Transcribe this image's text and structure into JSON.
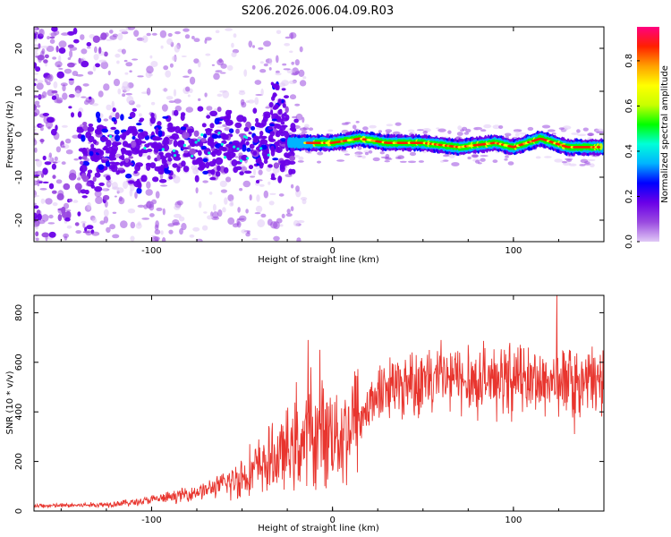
{
  "title": "S206.2026.006.04.09.R03",
  "colors": {
    "line": "#e8352e",
    "axis": "#000000"
  },
  "chart_data": [
    {
      "type": "heatmap",
      "name": "spectrogram",
      "xlabel": "Height of straight line (km)",
      "ylabel": "Frequency (Hz)",
      "xlim": [
        -165,
        150
      ],
      "ylim": [
        -25,
        25
      ],
      "xticks": [
        {
          "v": -100,
          "label": "-100"
        },
        {
          "v": 0,
          "label": "0"
        },
        {
          "v": 100,
          "label": "100"
        }
      ],
      "yticks": [
        {
          "v": 20,
          "label": "20"
        },
        {
          "v": 10,
          "label": "10"
        },
        {
          "v": 0,
          "label": "0"
        },
        {
          "v": -10,
          "label": "-10"
        },
        {
          "v": -20,
          "label": "-20"
        }
      ],
      "ridge": {
        "description": "dominant frequency ridge",
        "points": [
          [
            -165,
            -4
          ],
          [
            -130,
            -5
          ],
          [
            -100,
            -3
          ],
          [
            -70,
            -2
          ],
          [
            -40,
            -3
          ],
          [
            -25,
            -2
          ],
          [
            -15,
            -2
          ],
          [
            0,
            -2
          ],
          [
            15,
            -1
          ],
          [
            30,
            -2
          ],
          [
            50,
            -2
          ],
          [
            70,
            -3
          ],
          [
            90,
            -2
          ],
          [
            100,
            -3
          ],
          [
            115,
            -1
          ],
          [
            130,
            -3
          ],
          [
            150,
            -3
          ]
        ]
      }
    },
    {
      "type": "colorbar",
      "name": "colorbar",
      "label": "Normalized spectral amplitude",
      "range": [
        0,
        0.95
      ],
      "ticks": [
        {
          "v": 0.0,
          "label": "0.0"
        },
        {
          "v": 0.2,
          "label": "0.2"
        },
        {
          "v": 0.4,
          "label": "0.4"
        },
        {
          "v": 0.6,
          "label": "0.6"
        },
        {
          "v": 0.8,
          "label": "0.8"
        }
      ],
      "colormap": [
        "#e0c8f5",
        "#9a4ae0",
        "#6a00e8",
        "#0000ff",
        "#00b4ff",
        "#00ffd8",
        "#00ff00",
        "#c8ff00",
        "#ffff00",
        "#ffa000",
        "#ff2000",
        "#ff0080"
      ]
    },
    {
      "type": "line",
      "name": "snr",
      "xlabel": "Height of straight line (km)",
      "ylabel": "SNR (10 * v/v)",
      "xlim": [
        -165,
        150
      ],
      "ylim": [
        0,
        870
      ],
      "xticks": [
        {
          "v": -100,
          "label": "-100"
        },
        {
          "v": 0,
          "label": "0"
        },
        {
          "v": 100,
          "label": "100"
        }
      ],
      "yticks": [
        {
          "v": 0,
          "label": "0"
        },
        {
          "v": 200,
          "label": "200"
        },
        {
          "v": 400,
          "label": "400"
        },
        {
          "v": 600,
          "label": "600"
        },
        {
          "v": 800,
          "label": "800"
        }
      ],
      "trend": [
        [
          -165,
          20
        ],
        [
          -130,
          25
        ],
        [
          -110,
          35
        ],
        [
          -90,
          55
        ],
        [
          -70,
          85
        ],
        [
          -55,
          120
        ],
        [
          -45,
          160
        ],
        [
          -35,
          200
        ],
        [
          -25,
          240
        ],
        [
          -15,
          280
        ],
        [
          -8,
          300
        ],
        [
          0,
          330
        ],
        [
          5,
          310
        ],
        [
          10,
          340
        ],
        [
          15,
          390
        ],
        [
          20,
          440
        ],
        [
          30,
          500
        ],
        [
          45,
          525
        ],
        [
          60,
          530
        ],
        [
          80,
          530
        ],
        [
          100,
          530
        ],
        [
          120,
          525
        ],
        [
          150,
          525
        ]
      ],
      "spikes": [
        [
          -13.5,
          690
        ],
        [
          -7,
          650
        ],
        [
          -12,
          580
        ],
        [
          -20,
          520
        ],
        [
          60,
          690
        ],
        [
          124,
          870
        ],
        [
          75,
          670
        ],
        [
          68,
          640
        ],
        [
          131,
          650
        ],
        [
          95,
          650
        ],
        [
          44,
          640
        ],
        [
          148,
          630
        ]
      ]
    }
  ]
}
